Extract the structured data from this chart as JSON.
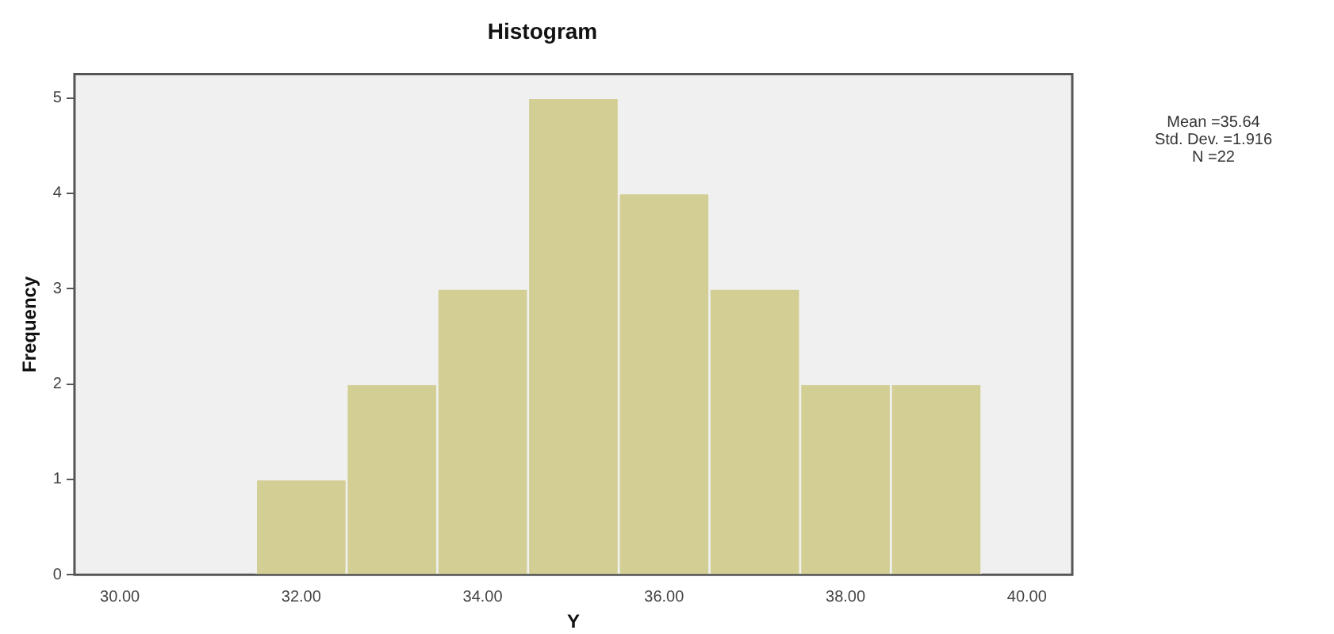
{
  "chart_data": {
    "type": "histogram",
    "title": "Histogram",
    "xlabel": "Y",
    "ylabel": "Frequency",
    "bins": [
      31.5,
      32.5,
      33.5,
      34.5,
      35.5,
      36.5,
      37.5,
      38.5,
      39.5
    ],
    "values": [
      1,
      2,
      3,
      5,
      4,
      3,
      2,
      2
    ],
    "color": "#d3cf94",
    "xlim": [
      29.5,
      40.5
    ],
    "xticks": [
      {
        "value": 30,
        "label": "30.00"
      },
      {
        "value": 32,
        "label": "32.00"
      },
      {
        "value": 34,
        "label": "34.00"
      },
      {
        "value": 36,
        "label": "36.00"
      },
      {
        "value": 38,
        "label": "38.00"
      },
      {
        "value": 40,
        "label": "40.00"
      }
    ],
    "ylim": [
      0,
      5.25
    ],
    "yticks": [
      0,
      1,
      2,
      3,
      4,
      5
    ],
    "grid": false,
    "legend": false,
    "annotations": [
      "Mean =35.64",
      "Std. Dev. =1.916",
      "N =22"
    ]
  }
}
